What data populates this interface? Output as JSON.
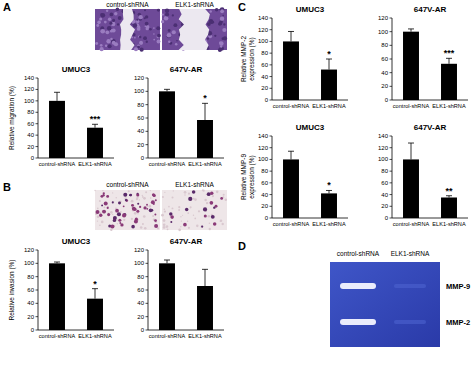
{
  "panel_labels": [
    "A",
    "B",
    "C",
    "D"
  ],
  "image_labels": [
    "control-shRNA",
    "ELK1-shRNA"
  ],
  "zymography": {
    "lanes": [
      "control-shRNA",
      "ELK1-shRNA"
    ],
    "bands": [
      "MMP-9",
      "MMP-2"
    ]
  },
  "chart_data": [
    {
      "type": "bar",
      "title": "UMUC3",
      "y_label": "Relative migration (%)",
      "categories": [
        "control-shRNA",
        "ELK1-shRNA"
      ],
      "values": [
        100,
        53
      ],
      "errors": [
        15,
        6
      ],
      "color": "#000000",
      "ylim": [
        0,
        140
      ],
      "yticks": [
        0,
        20,
        40,
        60,
        80,
        100,
        120,
        140
      ],
      "annotations": [
        {
          "x": "ELK1-shRNA",
          "text": "***"
        }
      ]
    },
    {
      "type": "bar",
      "title": "647V-AR",
      "categories": [
        "control-shRNA",
        "ELK1-shRNA"
      ],
      "values": [
        100,
        57
      ],
      "errors": [
        3,
        25
      ],
      "color": "#000000",
      "ylim": [
        0,
        120
      ],
      "yticks": [
        0,
        20,
        40,
        60,
        80,
        100,
        120
      ],
      "annotations": [
        {
          "x": "ELK1-shRNA",
          "text": "*"
        }
      ]
    },
    {
      "type": "bar",
      "title": "UMUC3",
      "y_label": "Relative invasion (%)",
      "categories": [
        "control-shRNA",
        "ELK1-shRNA"
      ],
      "values": [
        100,
        47
      ],
      "errors": [
        2,
        15
      ],
      "color": "#000000",
      "ylim": [
        0,
        120
      ],
      "yticks": [
        0,
        20,
        40,
        60,
        80,
        100,
        120
      ],
      "annotations": [
        {
          "x": "ELK1-shRNA",
          "text": "*"
        }
      ]
    },
    {
      "type": "bar",
      "title": "647V-AR",
      "categories": [
        "control-shRNA",
        "ELK1-shRNA"
      ],
      "values": [
        100,
        66
      ],
      "errors": [
        5,
        25
      ],
      "color": "#000000",
      "ylim": [
        0,
        120
      ],
      "yticks": [
        0,
        20,
        40,
        60,
        80,
        100,
        120
      ]
    },
    {
      "type": "bar",
      "title": "UMUC3",
      "y_label": "Relative MMP-2 expression (%)",
      "categories": [
        "control-shRNA",
        "ELK1-shRNA"
      ],
      "values": [
        100,
        52
      ],
      "errors": [
        17,
        18
      ],
      "color": "#000000",
      "ylim": [
        0,
        140
      ],
      "yticks": [
        0,
        20,
        40,
        60,
        80,
        100,
        120,
        140
      ],
      "annotations": [
        {
          "x": "ELK1-shRNA",
          "text": "*"
        }
      ]
    },
    {
      "type": "bar",
      "title": "647V-AR",
      "categories": [
        "control-shRNA",
        "ELK1-shRNA"
      ],
      "values": [
        100,
        53
      ],
      "errors": [
        4,
        8
      ],
      "color": "#000000",
      "ylim": [
        0,
        120
      ],
      "yticks": [
        0,
        20,
        40,
        60,
        80,
        100,
        120
      ],
      "annotations": [
        {
          "x": "ELK1-shRNA",
          "text": "***"
        }
      ]
    },
    {
      "type": "bar",
      "title": "UMUC3",
      "y_label": "Relative MMP-9 expression (%)",
      "categories": [
        "control-shRNA",
        "ELK1-shRNA"
      ],
      "values": [
        100,
        42
      ],
      "errors": [
        14,
        5
      ],
      "color": "#000000",
      "ylim": [
        0,
        140
      ],
      "yticks": [
        0,
        20,
        40,
        60,
        80,
        100,
        120,
        140
      ],
      "annotations": [
        {
          "x": "ELK1-shRNA",
          "text": "*"
        }
      ]
    },
    {
      "type": "bar",
      "title": "647V-AR",
      "categories": [
        "control-shRNA",
        "ELK1-shRNA"
      ],
      "values": [
        100,
        35
      ],
      "errors": [
        28,
        3
      ],
      "color": "#000000",
      "ylim": [
        0,
        140
      ],
      "yticks": [
        0,
        20,
        40,
        60,
        80,
        100,
        120,
        140
      ],
      "annotations": [
        {
          "x": "ELK1-shRNA",
          "text": "**"
        }
      ]
    }
  ]
}
